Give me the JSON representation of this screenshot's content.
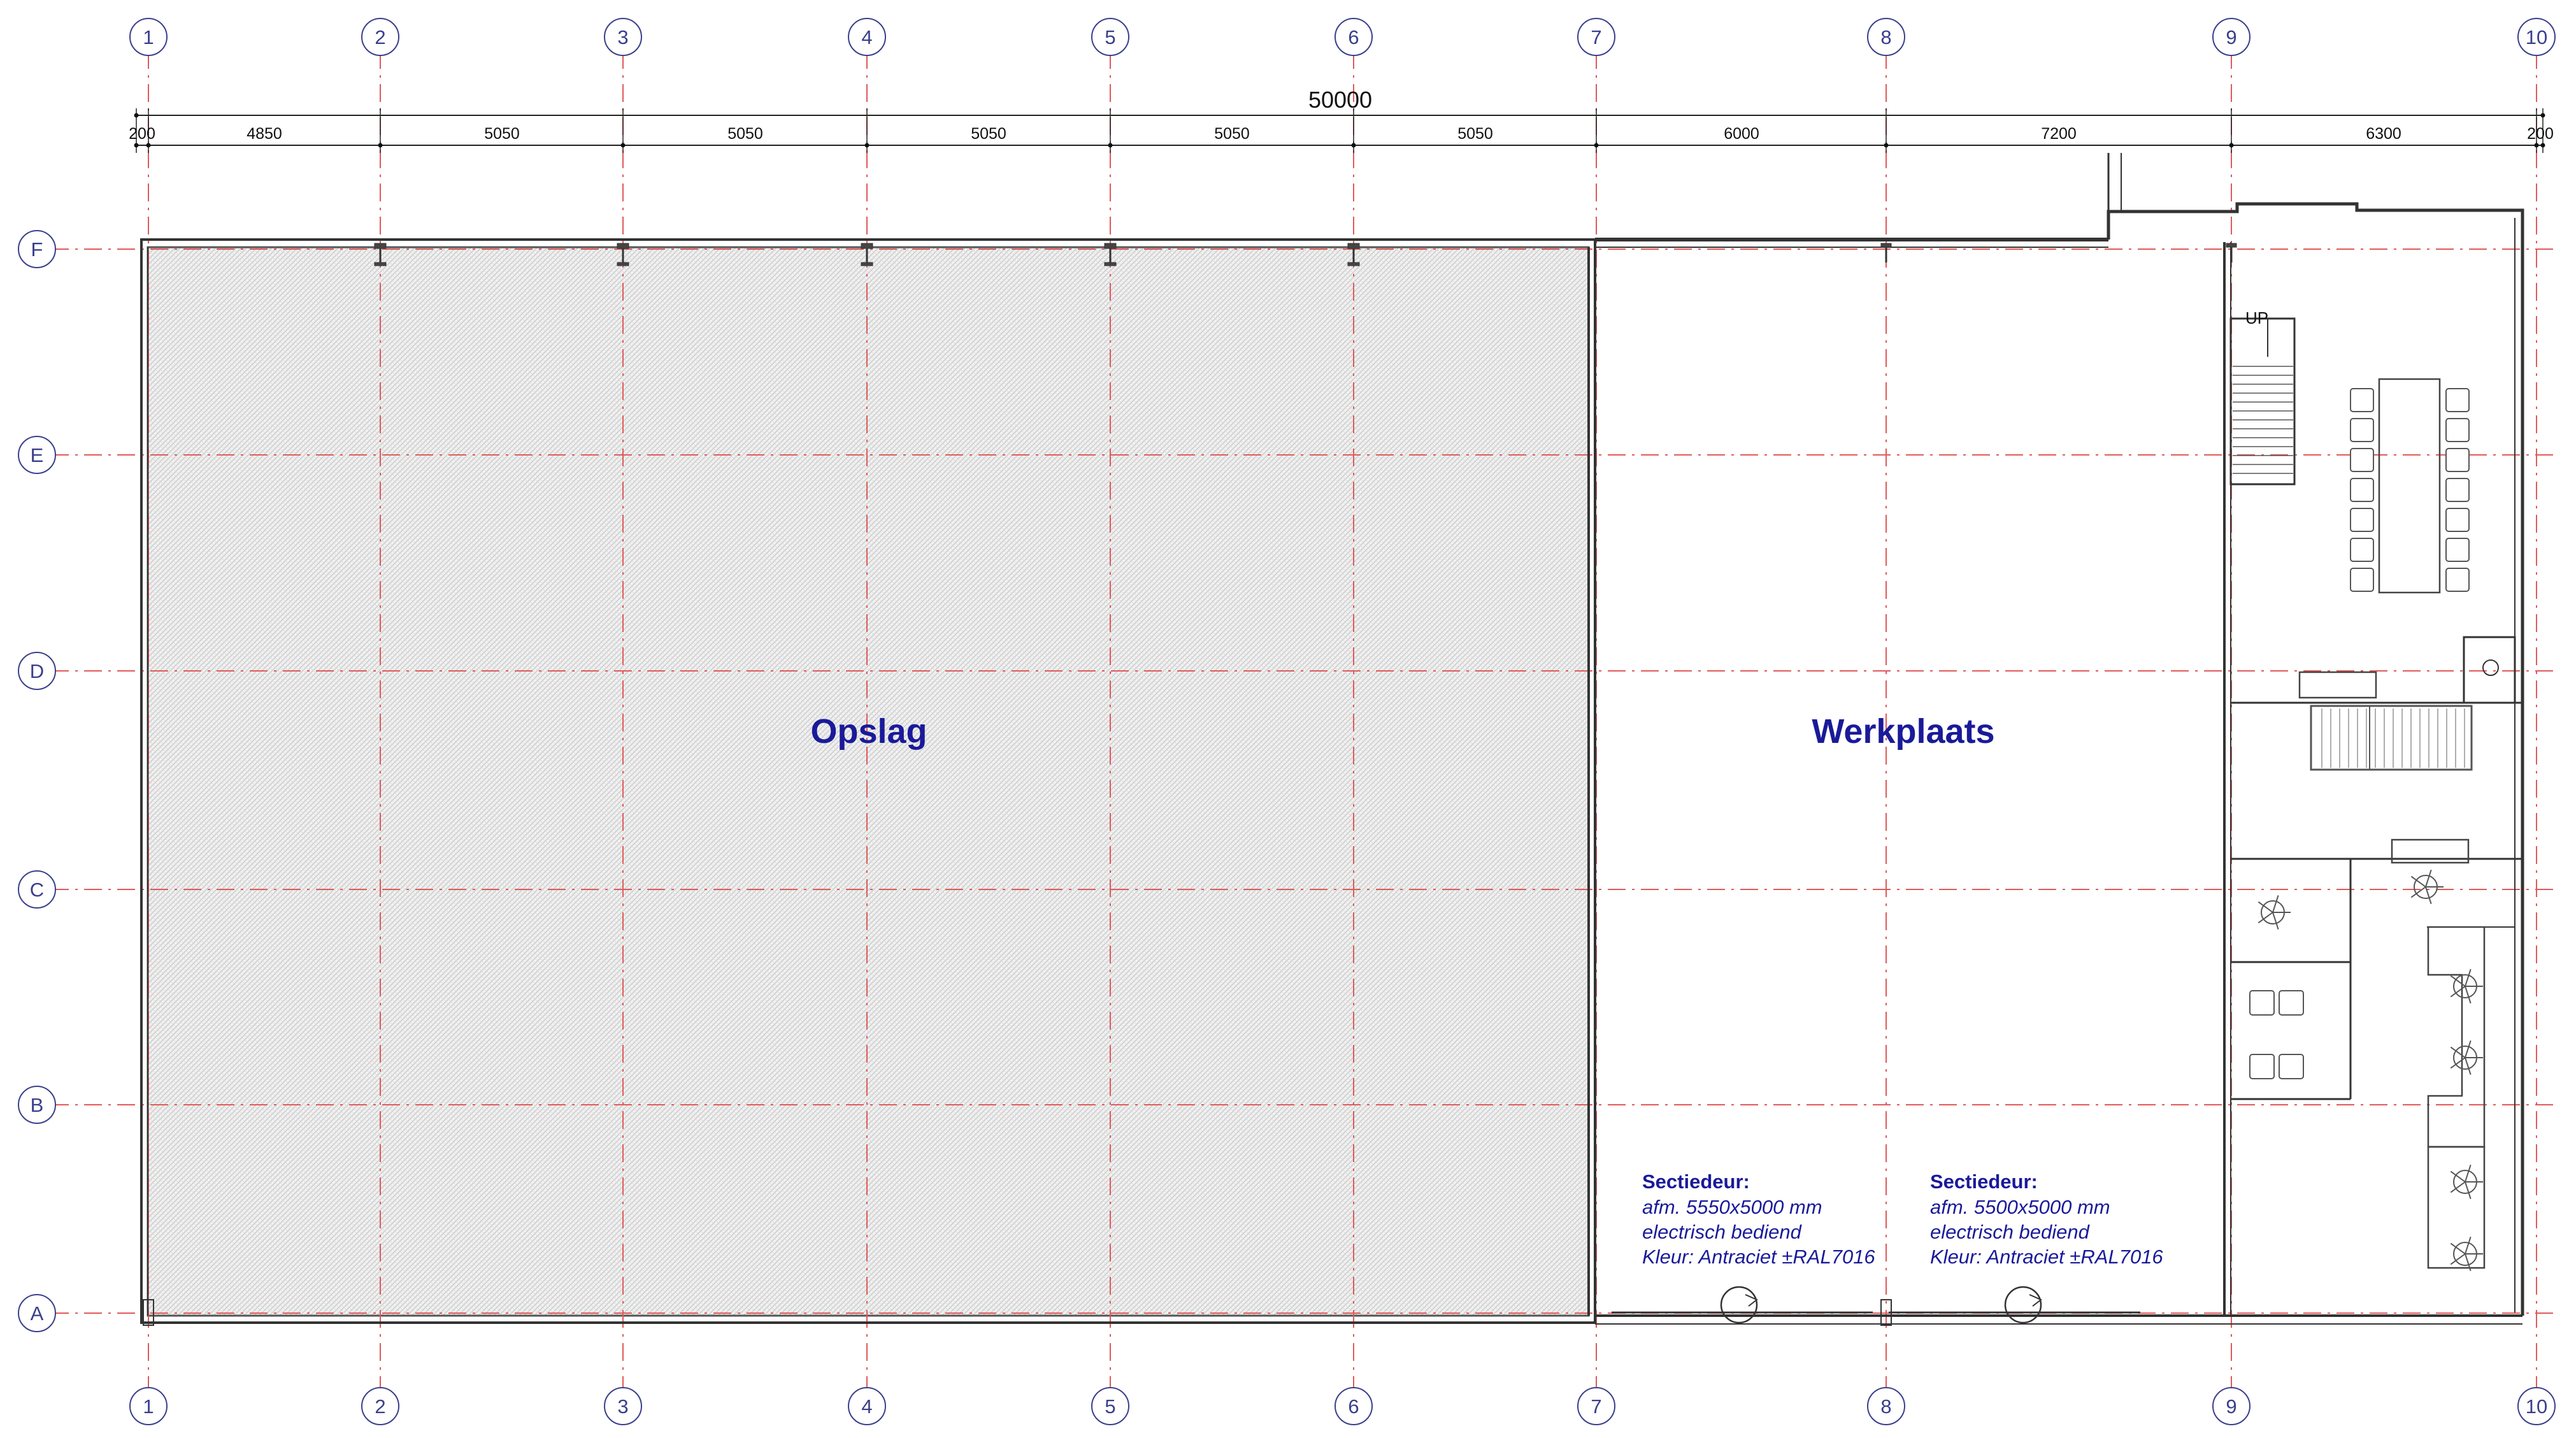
{
  "grid": {
    "columns": [
      "1",
      "2",
      "3",
      "4",
      "5",
      "6",
      "7",
      "8",
      "9",
      "10"
    ],
    "rows": [
      "F",
      "E",
      "D",
      "C",
      "B",
      "A"
    ]
  },
  "dimensions": {
    "total": "50000",
    "segments": [
      "200",
      "4850",
      "5050",
      "5050",
      "5050",
      "5050",
      "5050",
      "6000",
      "7200",
      "6300",
      "200"
    ]
  },
  "rooms": {
    "storage": "Opslag",
    "workshop": "Werkplaats"
  },
  "stair_label": "UP",
  "doors": [
    {
      "title": "Sectiedeur:",
      "lines": [
        "afm. 5550x5000 mm",
        "electrisch bediend",
        "Kleur: Antraciet ±RAL7016"
      ]
    },
    {
      "title": "Sectiedeur:",
      "lines": [
        "afm. 5500x5000 mm",
        "electrisch bediend",
        "Kleur: Antraciet ±RAL7016"
      ]
    }
  ],
  "colors": {
    "grid_line": "#e05a5a",
    "wall": "#333333",
    "bubble": "#3a3f8c",
    "label": "#1a1a9a",
    "hatch": "#cfcfcf"
  }
}
